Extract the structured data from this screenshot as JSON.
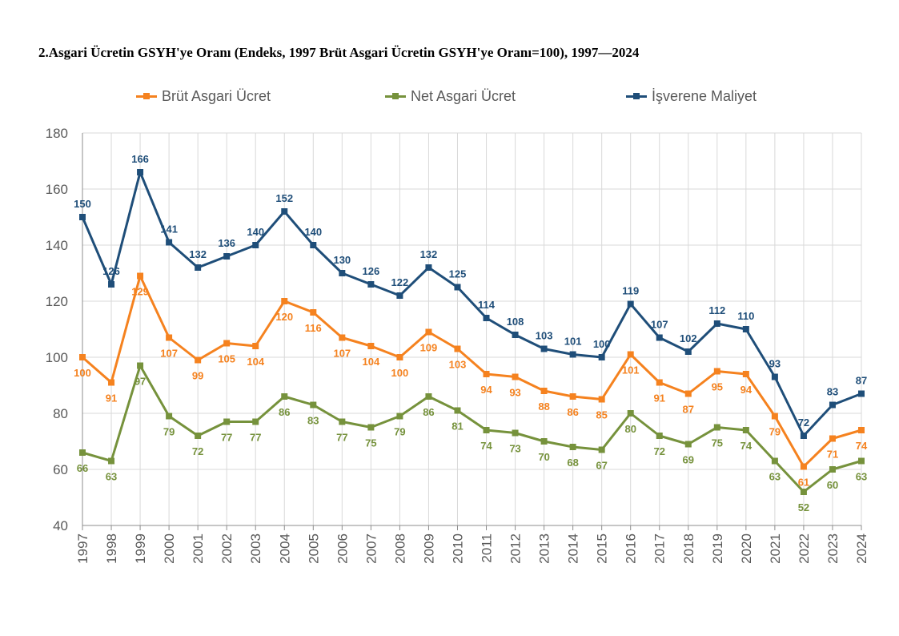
{
  "title": "2.Asgari Ücretin GSYH'ye Oranı (Endeks, 1997 Brüt Asgari Ücretin GSYH'ye Oranı=100), 1997—2024",
  "chart_data": {
    "type": "line",
    "title": "2.Asgari Ücretin GSYH'ye Oranı (Endeks, 1997 Brüt Asgari Ücretin GSYH'ye Oranı=100), 1997—2024",
    "xlabel": "",
    "ylabel": "",
    "ylim": [
      40,
      180
    ],
    "yticks": [
      40,
      60,
      80,
      100,
      120,
      140,
      160,
      180
    ],
    "grid": true,
    "legend": "top",
    "categories": [
      "1997",
      "1998",
      "1999",
      "2000",
      "2001",
      "2002",
      "2003",
      "2004",
      "2005",
      "2006",
      "2007",
      "2008",
      "2009",
      "2010",
      "2011",
      "2012",
      "2013",
      "2014",
      "2015",
      "2016",
      "2017",
      "2018",
      "2019",
      "2020",
      "2021",
      "2022",
      "2023",
      "2024"
    ],
    "series": [
      {
        "name": "Brüt Asgari Ücret",
        "color": "#F5821F",
        "values": [
          100,
          91,
          129,
          107,
          99,
          105,
          104,
          120,
          116,
          107,
          104,
          100,
          109,
          103,
          94,
          93,
          88,
          86,
          85,
          101,
          91,
          87,
          95,
          94,
          79,
          61,
          71,
          74
        ],
        "label_position": "below"
      },
      {
        "name": "Net Asgari Ücret",
        "color": "#76923C",
        "values": [
          66,
          63,
          97,
          79,
          72,
          77,
          77,
          86,
          83,
          77,
          75,
          79,
          86,
          81,
          74,
          73,
          70,
          68,
          67,
          80,
          72,
          69,
          75,
          74,
          63,
          52,
          60,
          63
        ],
        "label_position": "below"
      },
      {
        "name": "İşverene Maliyet",
        "color": "#1F4E79",
        "values": [
          150,
          126,
          166,
          141,
          132,
          136,
          140,
          152,
          140,
          130,
          126,
          122,
          132,
          125,
          114,
          108,
          103,
          101,
          100,
          119,
          107,
          102,
          112,
          110,
          93,
          72,
          83,
          87
        ],
        "label_position": "above"
      }
    ]
  }
}
